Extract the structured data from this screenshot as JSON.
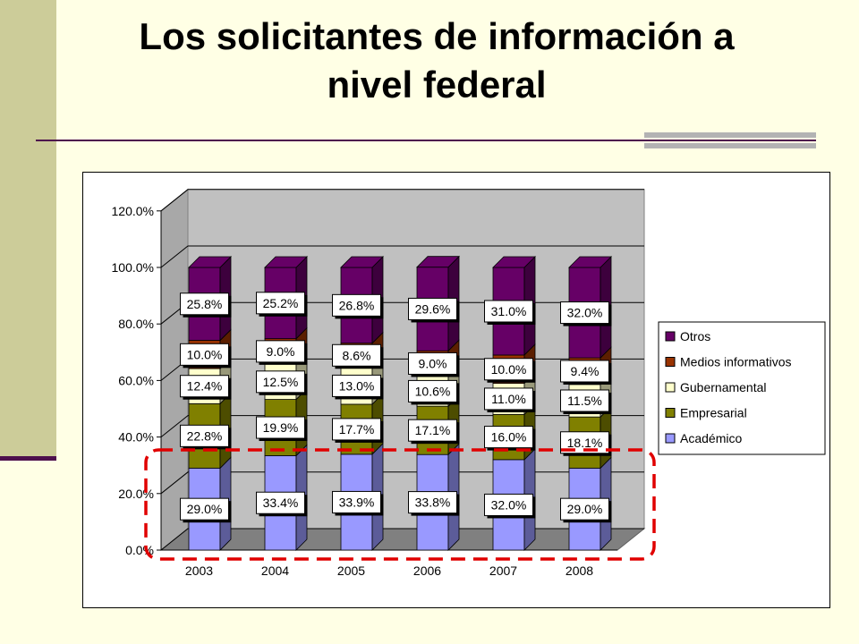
{
  "slide": {
    "title_line1": "Los solicitantes de información a",
    "title_line2": "nivel federal"
  },
  "colors": {
    "background": "#FFFFE5",
    "accent": "#CCCC99",
    "highlight": "#E00000"
  },
  "chart_data": {
    "type": "bar",
    "stacked": true,
    "three_d": true,
    "categories": [
      "2003",
      "2004",
      "2005",
      "2006",
      "2007",
      "2008"
    ],
    "series": [
      {
        "name": "Académico",
        "color": "#9999FF",
        "values": [
          29.0,
          33.4,
          33.9,
          33.8,
          32.0,
          29.0
        ],
        "labels": [
          "29.0%",
          "33.4%",
          "33.9%",
          "33.8%",
          "32.0%",
          "29.0%"
        ]
      },
      {
        "name": "Empresarial",
        "color": "#808000",
        "values": [
          22.8,
          19.9,
          17.7,
          17.1,
          16.0,
          18.1
        ],
        "labels": [
          "22.8%",
          "19.9%",
          "17.7%",
          "17.1%",
          "16.0%",
          "18.1%"
        ]
      },
      {
        "name": "Gubernamental",
        "color": "#FFFFCC",
        "values": [
          12.4,
          12.5,
          13.0,
          10.6,
          11.0,
          11.5
        ],
        "labels": [
          "12.4%",
          "12.5%",
          "13.0%",
          "10.6%",
          "11.0%",
          "11.5%"
        ]
      },
      {
        "name": "Medios informativos",
        "color": "#993300",
        "values": [
          10.0,
          9.0,
          8.6,
          9.0,
          10.0,
          9.4
        ],
        "labels": [
          "10.0%",
          "9.0%",
          "8.6%",
          "9.0%",
          "10.0%",
          "9.4%"
        ]
      },
      {
        "name": "Otros",
        "color": "#660066",
        "values": [
          25.8,
          25.2,
          26.8,
          29.6,
          31.0,
          32.0
        ],
        "labels": [
          "25.8%",
          "25.2%",
          "26.8%",
          "29.6%",
          "31.0%",
          "32.0%"
        ]
      }
    ],
    "y_ticks": [
      "0.0%",
      "20.0%",
      "40.0%",
      "60.0%",
      "80.0%",
      "100.0%",
      "120.0%"
    ],
    "ylim": [
      0,
      120
    ],
    "grid": true,
    "legend_position": "right",
    "legend_order": [
      "Otros",
      "Medios informativos",
      "Gubernamental",
      "Empresarial",
      "Académico"
    ],
    "highlight": "dashed red box around the Académico series"
  }
}
